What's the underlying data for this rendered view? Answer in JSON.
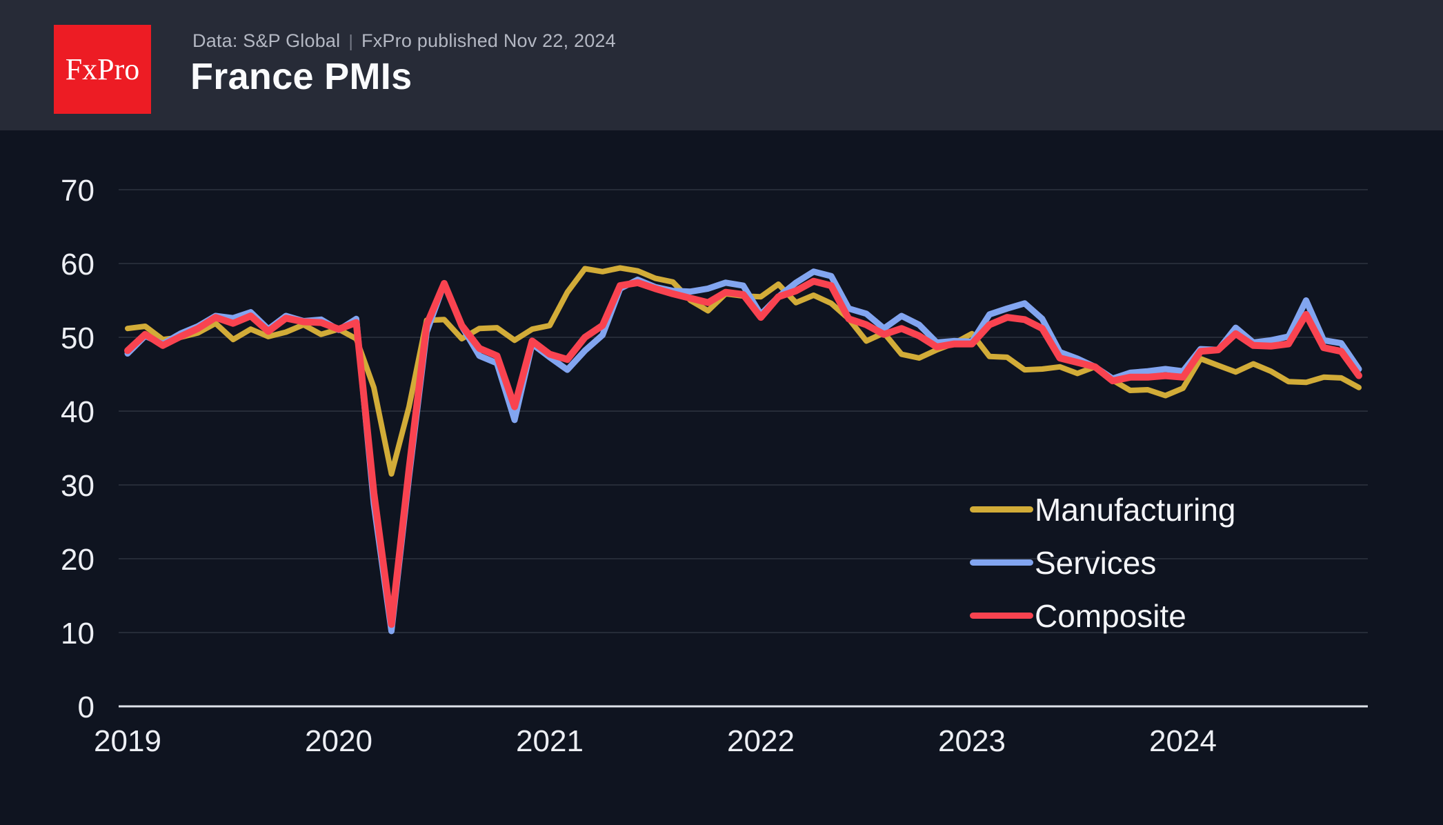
{
  "header": {
    "logo_text": "FxPro",
    "source": "Data: S&P Global",
    "separator": "|",
    "published": "FxPro published Nov 22, 2024",
    "title": "France PMIs"
  },
  "colors": {
    "page_background": "#0f1420",
    "header_background": "#272b37",
    "logo_red": "#ed1c24",
    "grid_line": "#2e3441",
    "axis_line": "#dfe3ea",
    "tick_text": "#edeff4",
    "legend_text": "#f4f5f8"
  },
  "chart_data": {
    "type": "line",
    "title": "France PMIs",
    "frequency": "monthly",
    "x_start": "2019-01",
    "x_end": "2024-11",
    "x_tick_labels": [
      "2019",
      "2020",
      "2021",
      "2022",
      "2023",
      "2024"
    ],
    "y_ticks": [
      0,
      10,
      20,
      30,
      40,
      50,
      60,
      70
    ],
    "ylim": [
      0,
      75
    ],
    "grid": true,
    "legend_position": "center-right",
    "series": [
      {
        "name": "Manufacturing",
        "color": "#d2ac38",
        "values": [
          51.2,
          51.5,
          49.7,
          50.0,
          50.6,
          51.9,
          49.7,
          51.1,
          50.1,
          50.7,
          51.7,
          50.4,
          51.1,
          49.8,
          43.2,
          31.5,
          40.6,
          52.3,
          52.4,
          49.8,
          51.2,
          51.3,
          49.6,
          51.1,
          51.6,
          56.1,
          59.3,
          58.9,
          59.4,
          59.0,
          58.0,
          57.5,
          55.0,
          53.6,
          55.9,
          55.6,
          55.5,
          57.2,
          54.7,
          55.7,
          54.6,
          52.5,
          49.5,
          50.6,
          47.7,
          47.2,
          48.3,
          49.2,
          50.5,
          47.4,
          47.3,
          45.6,
          45.7,
          46.0,
          45.1,
          46.0,
          44.2,
          42.8,
          42.9,
          42.1,
          43.1,
          47.1,
          46.2,
          45.3,
          46.4,
          45.4,
          44.0,
          43.9,
          44.6,
          44.5,
          43.2
        ]
      },
      {
        "name": "Services",
        "color": "#82a5f0",
        "values": [
          47.8,
          50.2,
          49.1,
          50.5,
          51.5,
          52.9,
          52.6,
          53.4,
          51.1,
          52.9,
          52.2,
          52.4,
          51.0,
          52.5,
          27.4,
          10.2,
          31.1,
          50.7,
          57.3,
          51.5,
          47.5,
          46.5,
          38.8,
          49.1,
          47.3,
          45.6,
          48.2,
          50.3,
          56.6,
          57.8,
          56.8,
          56.3,
          56.2,
          56.6,
          57.4,
          57.0,
          53.1,
          55.5,
          57.4,
          58.9,
          58.3,
          53.9,
          53.2,
          51.2,
          52.9,
          51.7,
          49.3,
          49.5,
          49.4,
          53.1,
          53.9,
          54.6,
          52.5,
          48.0,
          47.1,
          46.0,
          44.4,
          45.2,
          45.4,
          45.7,
          45.4,
          48.4,
          48.3,
          51.3,
          49.3,
          49.6,
          50.1,
          55.0,
          49.6,
          49.2,
          45.7
        ]
      },
      {
        "name": "Composite",
        "color": "#f94350",
        "values": [
          48.2,
          50.4,
          48.9,
          50.1,
          51.2,
          52.7,
          51.9,
          52.9,
          50.8,
          52.6,
          52.1,
          52.0,
          51.1,
          52.0,
          28.9,
          11.1,
          32.1,
          51.7,
          57.3,
          51.6,
          48.5,
          47.5,
          40.6,
          49.5,
          47.7,
          47.0,
          50.0,
          51.6,
          57.0,
          57.4,
          56.6,
          55.9,
          55.3,
          54.7,
          56.1,
          55.8,
          52.7,
          55.5,
          56.3,
          57.6,
          57.0,
          52.5,
          51.7,
          50.4,
          51.2,
          50.2,
          48.7,
          49.1,
          49.1,
          51.7,
          52.7,
          52.4,
          51.2,
          47.2,
          46.6,
          46.0,
          44.1,
          44.6,
          44.6,
          44.8,
          44.6,
          48.1,
          48.3,
          50.5,
          48.9,
          48.8,
          49.1,
          53.1,
          48.6,
          48.1,
          44.8
        ]
      }
    ]
  }
}
